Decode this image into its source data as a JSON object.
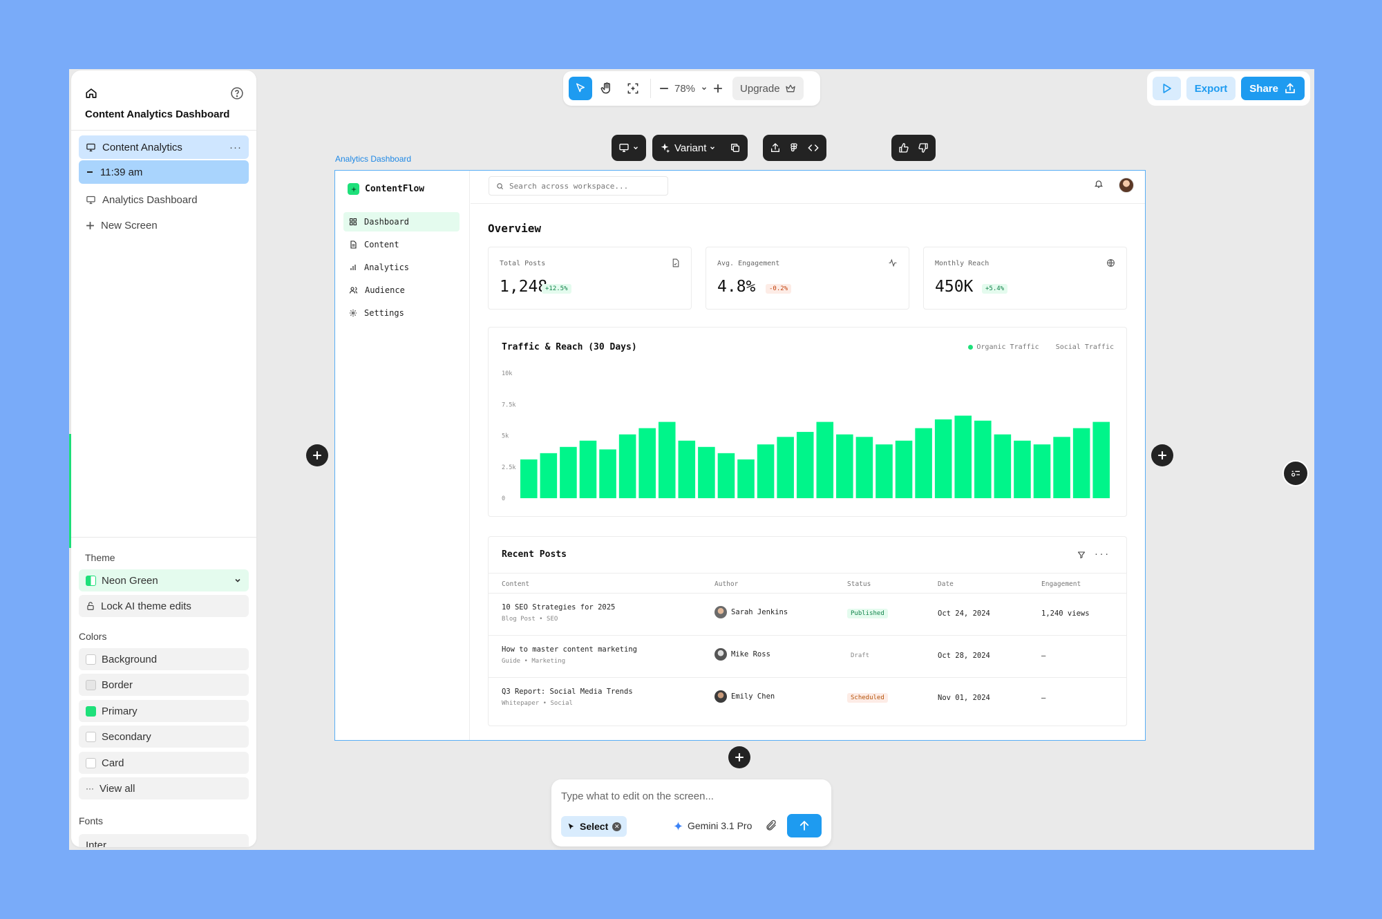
{
  "left_panel": {
    "project_title": "Content Analytics Dashboard",
    "screens": [
      {
        "label": "Content Analytics",
        "more": "···"
      },
      {
        "label": "11:39 am"
      },
      {
        "label": "Analytics Dashboard"
      },
      {
        "label": "New Screen"
      }
    ],
    "theme_label": "Theme",
    "theme_value": "Neon Green",
    "lock_label": "Lock AI theme edits",
    "colors_label": "Colors",
    "colors": [
      "Background",
      "Border",
      "Primary",
      "Secondary",
      "Card"
    ],
    "view_all": "View all",
    "fonts_label": "Fonts",
    "font_value": "Inter",
    "primary_color": "#1ee07a"
  },
  "toolbar": {
    "zoom": "78%",
    "upgrade": "Upgrade"
  },
  "top_right": {
    "export": "Export",
    "share": "Share"
  },
  "frame_toolbar": {
    "variant": "Variant"
  },
  "frame": {
    "label": "Analytics Dashboard"
  },
  "dashboard": {
    "brand": "ContentFlow",
    "nav": [
      "Dashboard",
      "Content",
      "Analytics",
      "Audience",
      "Settings"
    ],
    "search_placeholder": "Search across workspace...",
    "overview": "Overview",
    "stats": [
      {
        "label": "Total Posts",
        "value": "1,248",
        "change": "+12.5%",
        "trend": "up"
      },
      {
        "label": "Avg. Engagement",
        "value": "4.8%",
        "change": "-0.2%",
        "trend": "down"
      },
      {
        "label": "Monthly Reach",
        "value": "450K",
        "change": "+5.4%",
        "trend": "up"
      }
    ],
    "chart_title": "Traffic & Reach (30 Days)",
    "legend": [
      "Organic Traffic",
      "Social Traffic"
    ],
    "recent_title": "Recent Posts",
    "table_headers": [
      "Content",
      "Author",
      "Status",
      "Date",
      "Engagement"
    ],
    "posts": [
      {
        "title": "10 SEO Strategies for 2025",
        "meta": "Blog Post • SEO",
        "author": "Sarah Jenkins",
        "status": "Published",
        "date": "Oct 24, 2024",
        "engagement": "1,240 views"
      },
      {
        "title": "How to master content marketing",
        "meta": "Guide • Marketing",
        "author": "Mike Ross",
        "status": "Draft",
        "date": "Oct 28, 2024",
        "engagement": "—"
      },
      {
        "title": "Q3 Report: Social Media Trends",
        "meta": "Whitepaper • Social",
        "author": "Emily Chen",
        "status": "Scheduled",
        "date": "Nov 01, 2024",
        "engagement": "—"
      }
    ]
  },
  "prompt": {
    "placeholder": "Type what to edit on the screen...",
    "select": "Select",
    "model": "Gemini 3.1 Pro"
  },
  "chart_data": {
    "type": "bar",
    "title": "Traffic & Reach (30 Days)",
    "series": [
      {
        "name": "Organic Traffic",
        "values": [
          3100,
          3600,
          4100,
          4600,
          3900,
          5100,
          5600,
          6100,
          4600,
          4100,
          3600,
          3100,
          4300,
          4900,
          5300,
          6100,
          5100,
          4900,
          4300,
          4600,
          5600,
          6300,
          6600,
          6200,
          5100,
          4600,
          4300,
          4900,
          5600,
          6100
        ]
      }
    ],
    "yticks": [
      "0",
      "2.5k",
      "5k",
      "7.5k",
      "10k"
    ],
    "ylim": [
      0,
      10000
    ],
    "bar_color": "#00f58a",
    "grid": false,
    "legend_position": "top-right"
  }
}
